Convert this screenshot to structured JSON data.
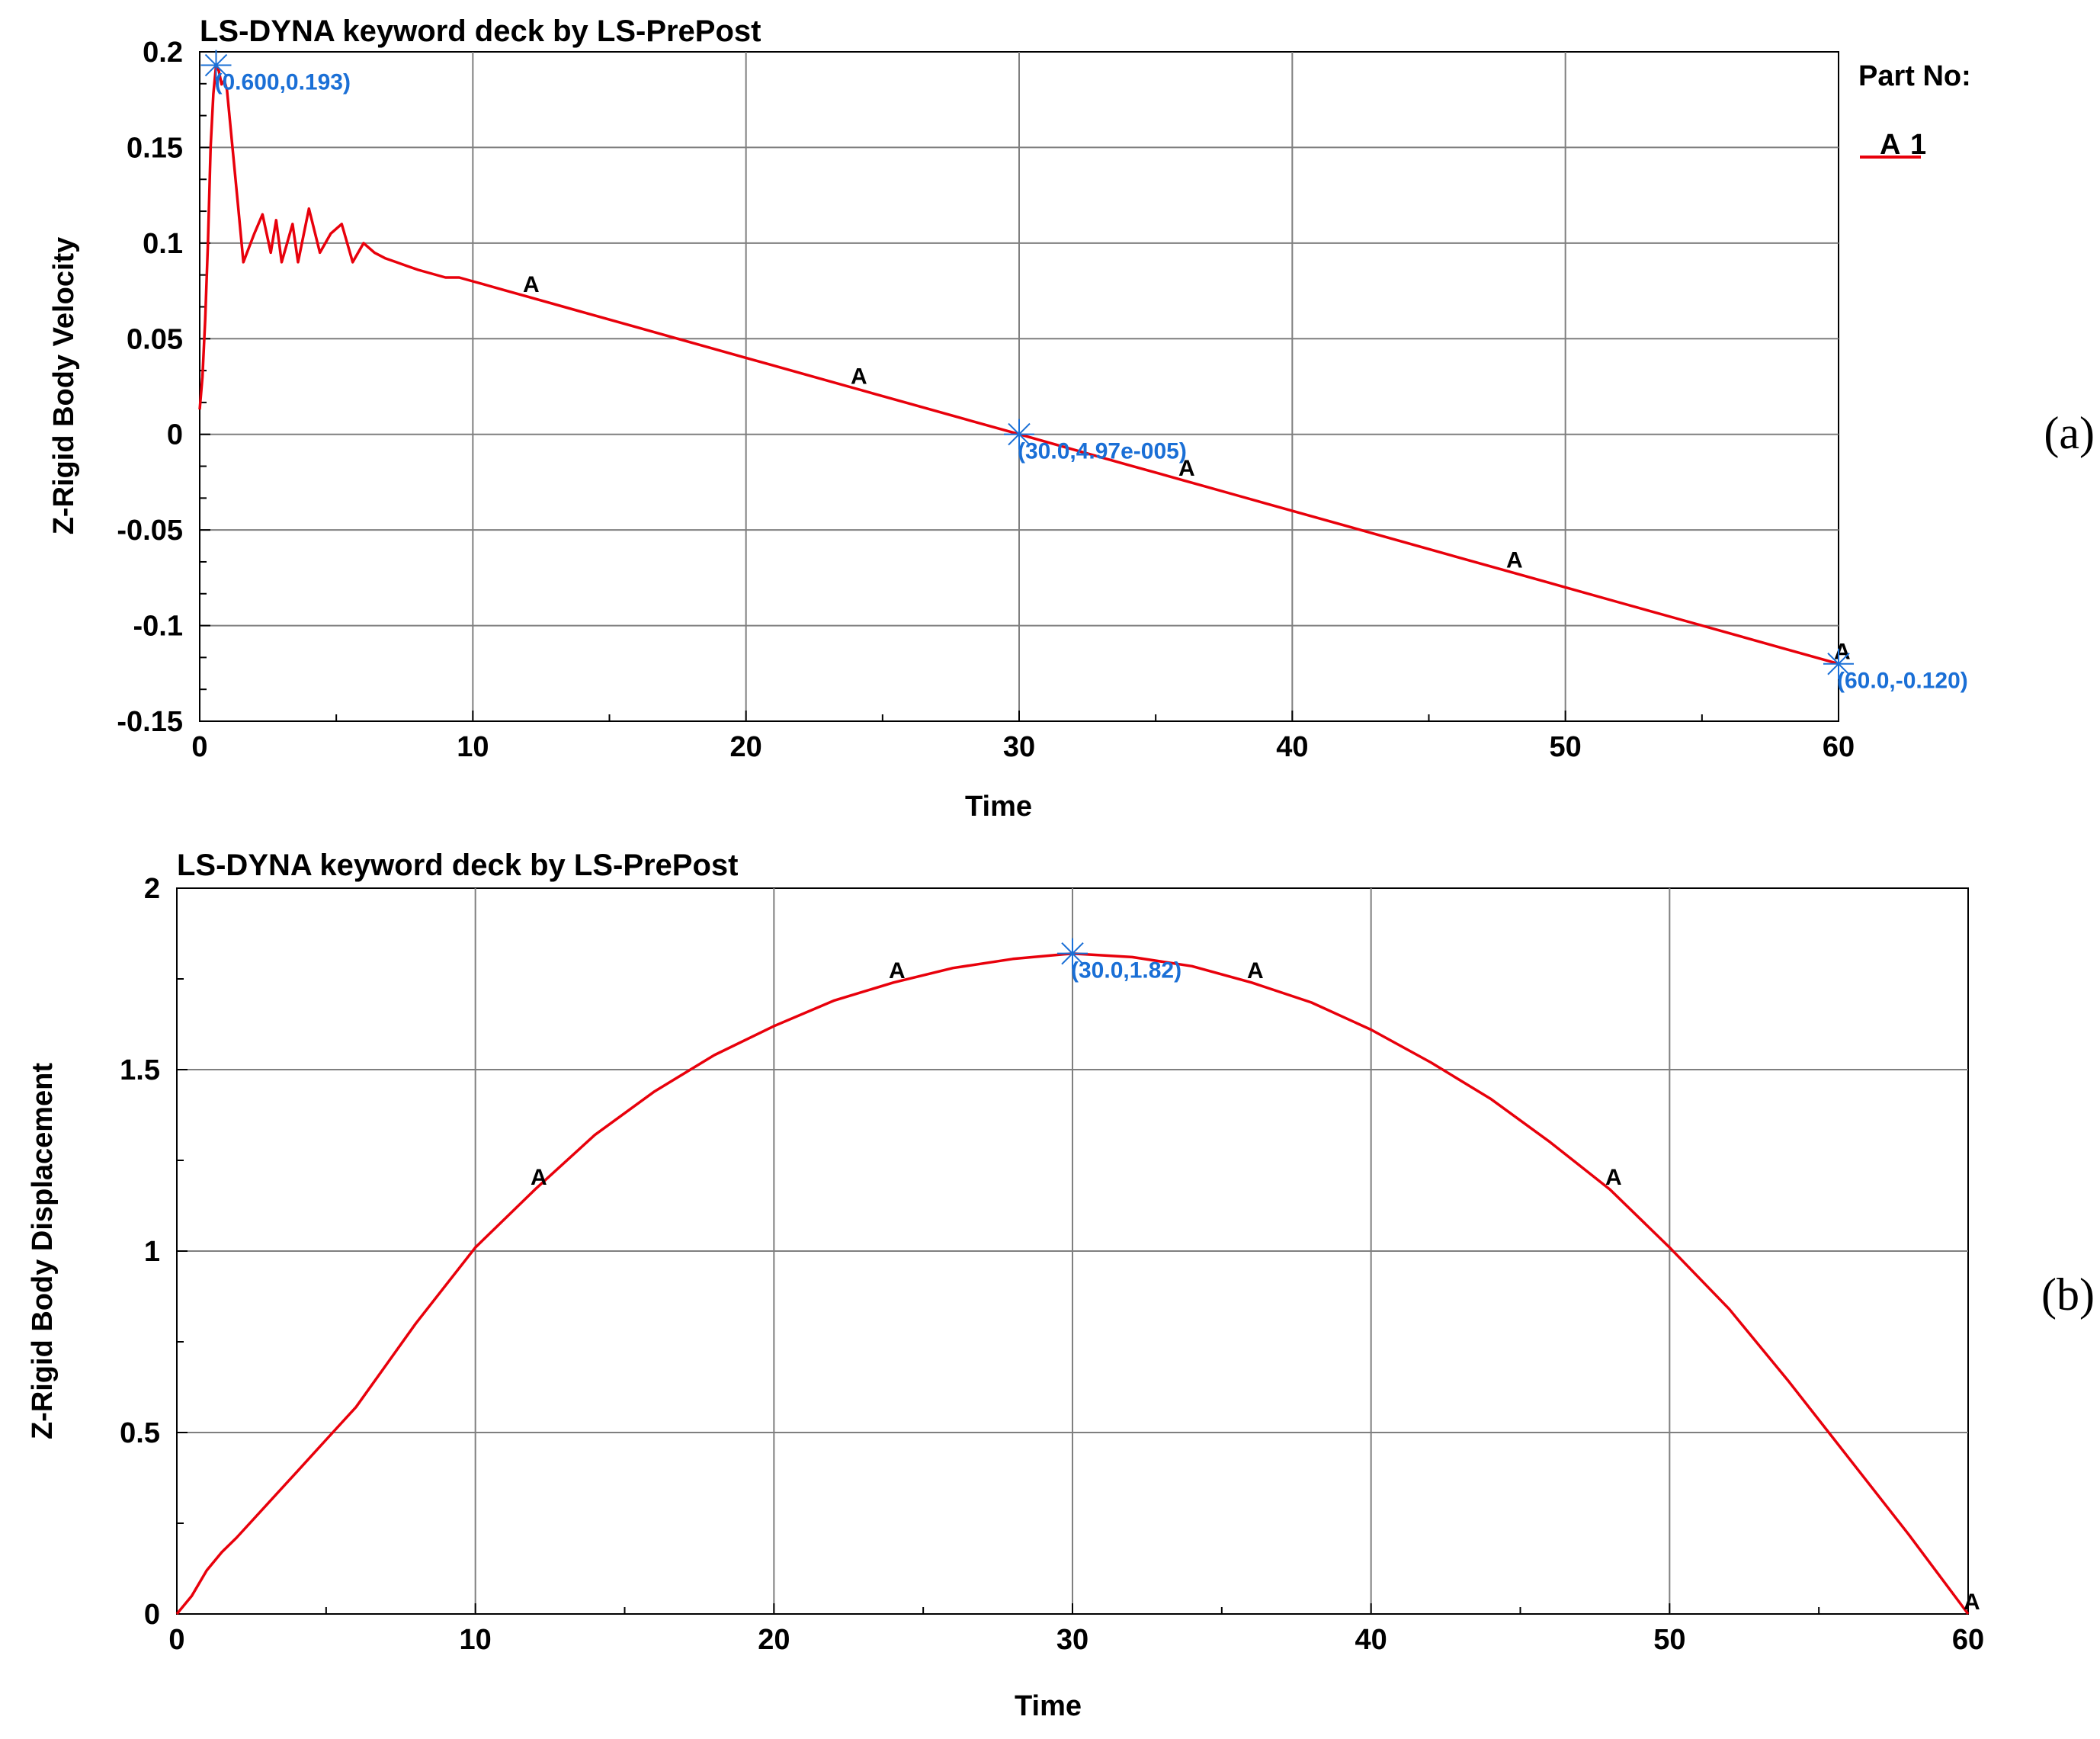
{
  "chart_data": [
    {
      "panel_label": "(a)",
      "type": "line",
      "title": "LS-DYNA keyword deck by LS-PrePost",
      "xlabel": "Time",
      "ylabel": "Z-Rigid Body Velocity",
      "xlim": [
        0,
        60
      ],
      "ylim": [
        -0.15,
        0.2
      ],
      "xticks": [
        "0",
        "10",
        "20",
        "30",
        "40",
        "50",
        "60"
      ],
      "yticks": [
        "0.2",
        "0.15",
        "0.1",
        "0.05",
        "0",
        "-0.05",
        "-0.1",
        "-0.15"
      ],
      "grid": true,
      "legend": {
        "title": "Part No:",
        "placement": "right",
        "entries": [
          {
            "marker": "A",
            "label": "1"
          }
        ]
      },
      "series": [
        {
          "name": "1",
          "color": "#e8000b",
          "marker_letter": "A",
          "x": [
            0,
            0.1,
            0.2,
            0.3,
            0.4,
            0.5,
            0.6,
            0.7,
            0.8,
            0.9,
            1.0,
            1.2,
            1.4,
            1.6,
            2.0,
            2.3,
            2.6,
            2.8,
            3.0,
            3.2,
            3.4,
            3.6,
            4.0,
            4.4,
            4.8,
            5.2,
            5.6,
            6.0,
            6.4,
            6.8,
            7.2,
            7.6,
            8.0,
            8.5,
            9.0,
            9.5,
            10.0,
            10.5,
            11.0,
            12.0,
            14.0,
            16.0,
            18.0,
            20.0,
            22.0,
            24.0,
            26.0,
            28.0,
            30.0,
            32.0,
            34.0,
            36.0,
            38.0,
            40.0,
            42.0,
            44.0,
            46.0,
            48.0,
            50.0,
            52.0,
            54.0,
            56.0,
            58.0,
            60.0
          ],
          "y": [
            0.013,
            0.03,
            0.06,
            0.1,
            0.15,
            0.178,
            0.193,
            0.19,
            0.183,
            0.185,
            0.18,
            0.15,
            0.12,
            0.09,
            0.105,
            0.115,
            0.095,
            0.112,
            0.09,
            0.1,
            0.11,
            0.09,
            0.118,
            0.095,
            0.105,
            0.11,
            0.09,
            0.1,
            0.095,
            0.092,
            0.09,
            0.088,
            0.086,
            0.084,
            0.082,
            0.082,
            0.08,
            0.078,
            0.076,
            0.072,
            0.064,
            0.056,
            0.048,
            0.04,
            0.032,
            0.024,
            0.016,
            0.008,
            5e-05,
            -0.008,
            -0.016,
            -0.024,
            -0.032,
            -0.04,
            -0.048,
            -0.056,
            -0.064,
            -0.072,
            -0.08,
            -0.088,
            -0.096,
            -0.104,
            -0.112,
            -0.12
          ]
        }
      ],
      "markers_x": [
        12,
        24,
        36,
        48,
        60
      ],
      "annotations": [
        {
          "x": 0.6,
          "y": 0.193,
          "text": "(0.600,0.193)"
        },
        {
          "x": 30.0,
          "y": 4.97e-05,
          "text": "(30.0,4.97e-005)"
        },
        {
          "x": 60.0,
          "y": -0.12,
          "text": "(60.0,-0.120)"
        }
      ]
    },
    {
      "panel_label": "(b)",
      "type": "line",
      "title": "LS-DYNA keyword deck by LS-PrePost",
      "xlabel": "Time",
      "ylabel": "Z-Rigid Body Displacement",
      "xlim": [
        0,
        60
      ],
      "ylim": [
        0,
        2
      ],
      "xticks": [
        "0",
        "10",
        "20",
        "30",
        "40",
        "50",
        "60"
      ],
      "yticks": [
        "2",
        "1.5",
        "1",
        "0.5",
        "0"
      ],
      "grid": true,
      "series": [
        {
          "name": "1",
          "color": "#e8000b",
          "marker_letter": "A",
          "x": [
            0,
            0.5,
            1,
            1.5,
            2,
            3,
            4,
            5,
            6,
            8,
            10,
            12,
            14,
            16,
            18,
            20,
            22,
            24,
            26,
            28,
            30,
            32,
            34,
            36,
            38,
            40,
            42,
            44,
            46,
            48,
            50,
            52,
            54,
            56,
            58,
            60
          ],
          "y": [
            0,
            0.05,
            0.12,
            0.17,
            0.21,
            0.3,
            0.39,
            0.48,
            0.57,
            0.8,
            1.01,
            1.17,
            1.32,
            1.44,
            1.54,
            1.62,
            1.69,
            1.74,
            1.78,
            1.805,
            1.82,
            1.81,
            1.785,
            1.74,
            1.685,
            1.61,
            1.52,
            1.42,
            1.3,
            1.17,
            1.01,
            0.84,
            0.64,
            0.43,
            0.22,
            0
          ]
        }
      ],
      "markers_x": [
        12,
        24,
        36,
        48,
        60
      ],
      "annotations": [
        {
          "x": 30.0,
          "y": 1.82,
          "text": "(30.0,1.82)"
        }
      ]
    }
  ]
}
